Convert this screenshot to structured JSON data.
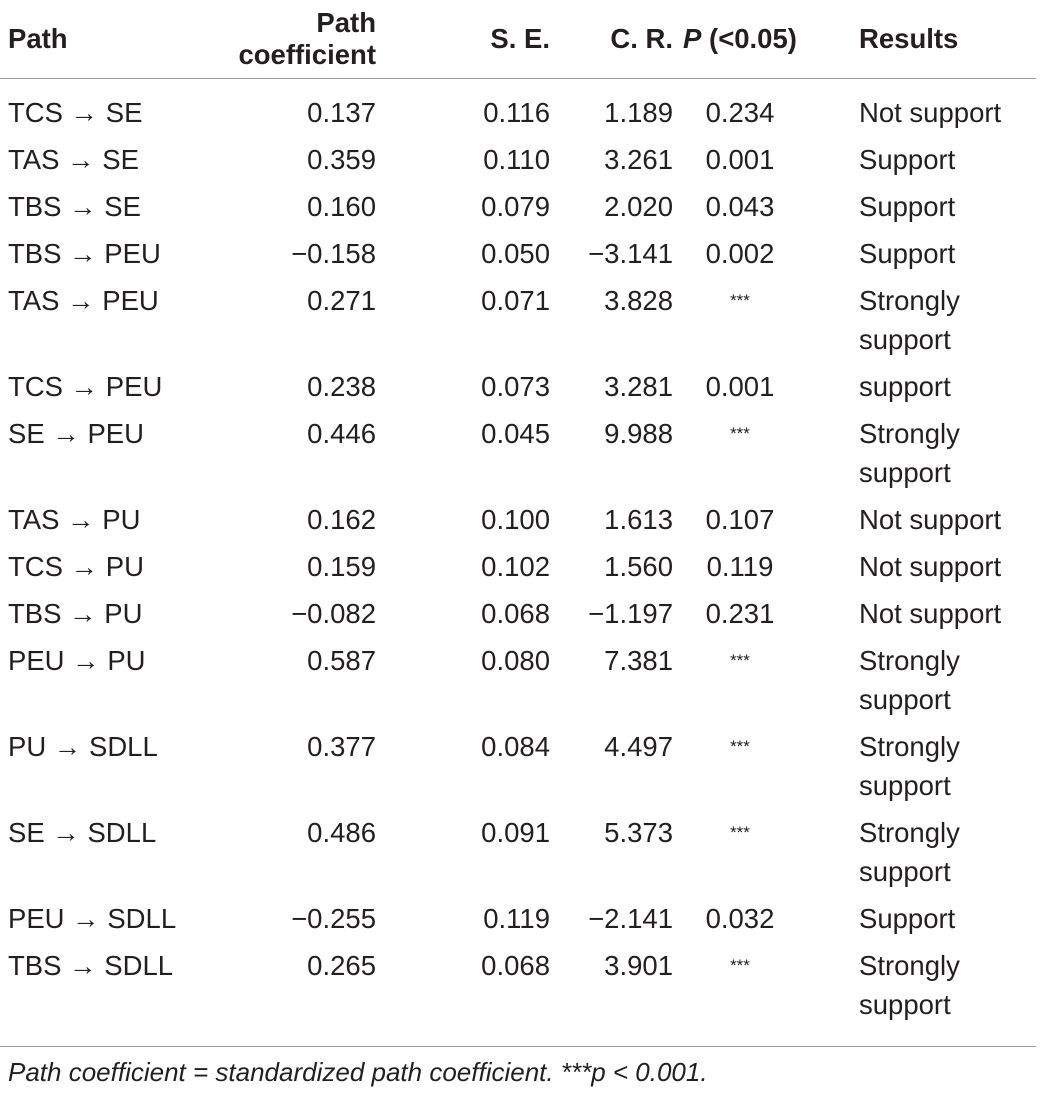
{
  "table": {
    "headers": {
      "path": "Path",
      "coefficient": "Path coefficient",
      "se": "S. E.",
      "cr": "C. R.",
      "p_letter": "P",
      "p_suffix": " (<0.05)",
      "results": "Results"
    },
    "rows": [
      {
        "path": "TCS → SE",
        "coefficient": "0.137",
        "se": "0.116",
        "cr": "1.189",
        "p": "0.234",
        "result": "Not support"
      },
      {
        "path": "TAS → SE",
        "coefficient": "0.359",
        "se": "0.110",
        "cr": "3.261",
        "p": "0.001",
        "result": "Support"
      },
      {
        "path": "TBS → SE",
        "coefficient": "0.160",
        "se": "0.079",
        "cr": "2.020",
        "p": "0.043",
        "result": "Support"
      },
      {
        "path": "TBS → PEU",
        "coefficient": "−0.158",
        "se": "0.050",
        "cr": "−3.141",
        "p": "0.002",
        "result": "Support"
      },
      {
        "path": "TAS → PEU",
        "coefficient": "0.271",
        "se": "0.071",
        "cr": "3.828",
        "p": "***",
        "result": "Strongly support"
      },
      {
        "path": "TCS → PEU",
        "coefficient": "0.238",
        "se": "0.073",
        "cr": "3.281",
        "p": "0.001",
        "result": "support"
      },
      {
        "path": "SE → PEU",
        "coefficient": "0.446",
        "se": "0.045",
        "cr": "9.988",
        "p": "***",
        "result": "Strongly support"
      },
      {
        "path": "TAS → PU",
        "coefficient": "0.162",
        "se": "0.100",
        "cr": "1.613",
        "p": "0.107",
        "result": "Not support"
      },
      {
        "path": "TCS → PU",
        "coefficient": "0.159",
        "se": "0.102",
        "cr": "1.560",
        "p": "0.119",
        "result": "Not support"
      },
      {
        "path": "TBS → PU",
        "coefficient": "−0.082",
        "se": "0.068",
        "cr": "−1.197",
        "p": "0.231",
        "result": "Not support"
      },
      {
        "path": "PEU → PU",
        "coefficient": "0.587",
        "se": "0.080",
        "cr": "7.381",
        "p": "***",
        "result": "Strongly support"
      },
      {
        "path": "PU → SDLL",
        "coefficient": "0.377",
        "se": "0.084",
        "cr": "4.497",
        "p": "***",
        "result": "Strongly support"
      },
      {
        "path": "SE → SDLL",
        "coefficient": "0.486",
        "se": "0.091",
        "cr": "5.373",
        "p": "***",
        "result": "Strongly support"
      },
      {
        "path": "PEU → SDLL",
        "coefficient": "−0.255",
        "se": "0.119",
        "cr": "−2.141",
        "p": "0.032",
        "result": "Support"
      },
      {
        "path": "TBS → SDLL",
        "coefficient": "0.265",
        "se": "0.068",
        "cr": "3.901",
        "p": "***",
        "result": "Strongly support"
      }
    ]
  },
  "footnote": "Path coefficient = standardized path coefficient. ***p < 0.001."
}
